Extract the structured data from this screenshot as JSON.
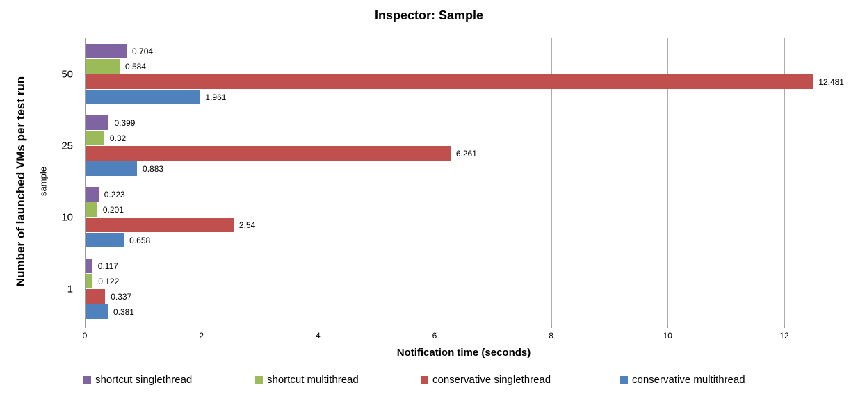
{
  "title": "Inspector: Sample",
  "chart_data": {
    "type": "bar",
    "orientation": "horizontal",
    "title": "Inspector: Sample",
    "xlabel": "Notification time (seconds)",
    "ylabel": "Number of launched VMs per test run",
    "ylabel_secondary": "sample",
    "categories": [
      "50",
      "25",
      "10",
      "1"
    ],
    "series": [
      {
        "name": "shortcut singlethread",
        "color": "#8064A2",
        "values": [
          0.704,
          0.399,
          0.223,
          0.117
        ],
        "labels": [
          "0.704",
          "0.399",
          "0.223",
          "0.117"
        ]
      },
      {
        "name": "shortcut multithread",
        "color": "#9BBB59",
        "values": [
          0.584,
          0.32,
          0.201,
          0.122
        ],
        "labels": [
          "0.584",
          "0.32",
          "0.201",
          "0.122"
        ]
      },
      {
        "name": "conservative singlethread",
        "color": "#C0504D",
        "values": [
          12.481,
          6.261,
          2.54,
          0.337
        ],
        "labels": [
          "12.481",
          "6.261",
          "2.54",
          "0.337"
        ]
      },
      {
        "name": "conservative multithread",
        "color": "#4F81BD",
        "values": [
          1.961,
          0.883,
          0.658,
          0.381
        ],
        "labels": [
          "1.961",
          "0.883",
          "0.658",
          "0.381"
        ]
      }
    ],
    "xlim": [
      0,
      13
    ],
    "xticks": [
      "0",
      "2",
      "4",
      "6",
      "8",
      "10",
      "12"
    ],
    "grid": true,
    "legend_position": "bottom",
    "colors": {
      "gridline": "#ababab",
      "axis": "#9b9b9b",
      "text": "#000000",
      "background": "#ffffff"
    }
  }
}
